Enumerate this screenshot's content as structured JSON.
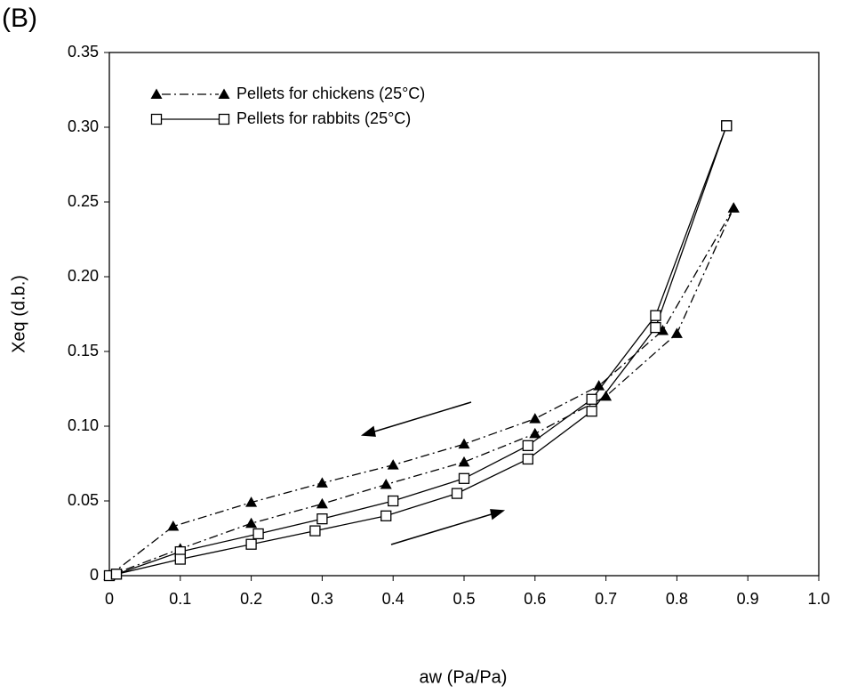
{
  "chart_data": {
    "type": "line",
    "panel_label": "(B)",
    "x_label": "aw (Pa/Pa)",
    "y_label": "Xeq (d.b.)",
    "xlim": [
      0,
      1
    ],
    "ylim": [
      0,
      0.35
    ],
    "xticks": [
      0,
      0.1,
      0.2,
      0.3,
      0.4,
      0.5,
      0.6,
      0.7,
      0.8,
      0.9,
      {
        "value": 1,
        "label": "1.0"
      }
    ],
    "yticks": [
      0,
      0.05,
      {
        "value": 0.1,
        "label": "0.10"
      },
      0.15,
      {
        "value": 0.2,
        "label": "0.20"
      },
      0.25,
      {
        "value": 0.3,
        "label": "0.30"
      },
      0.35
    ],
    "series": [
      {
        "name": "Pellets for chickens (25°C)",
        "color": "#000000",
        "marker": "triangle",
        "dash": "10,4,2,4",
        "branches": [
          {
            "x": [
              0,
              0.09,
              0.2,
              0.3,
              0.4,
              0.5,
              0.6,
              0.69,
              0.78,
              0.88
            ],
            "y": [
              0,
              0.033,
              0.049,
              0.062,
              0.074,
              0.088,
              0.105,
              0.127,
              0.164,
              0.246
            ]
          },
          {
            "x": [
              0,
              0.1,
              0.2,
              0.3,
              0.39,
              0.5,
              0.6,
              0.7,
              0.8,
              0.88
            ],
            "y": [
              0,
              0.018,
              0.035,
              0.048,
              0.061,
              0.076,
              0.095,
              0.12,
              0.162,
              0.246
            ]
          }
        ]
      },
      {
        "name": "Pellets for rabbits (25°C)",
        "color": "#000000",
        "marker": "square",
        "dash": "none",
        "branches": [
          {
            "x": [
              0,
              0.01,
              0.1,
              0.21,
              0.3,
              0.4,
              0.5,
              0.59,
              0.68,
              0.77,
              0.87
            ],
            "y": [
              0,
              0.001,
              0.016,
              0.028,
              0.038,
              0.05,
              0.065,
              0.087,
              0.118,
              0.174,
              0.301
            ]
          },
          {
            "x": [
              0.01,
              0.1,
              0.2,
              0.29,
              0.39,
              0.49,
              0.59,
              0.68,
              0.77,
              0.87
            ],
            "y": [
              0.001,
              0.011,
              0.021,
              0.03,
              0.04,
              0.055,
              0.078,
              0.11,
              0.166,
              0.301
            ]
          }
        ]
      }
    ]
  }
}
